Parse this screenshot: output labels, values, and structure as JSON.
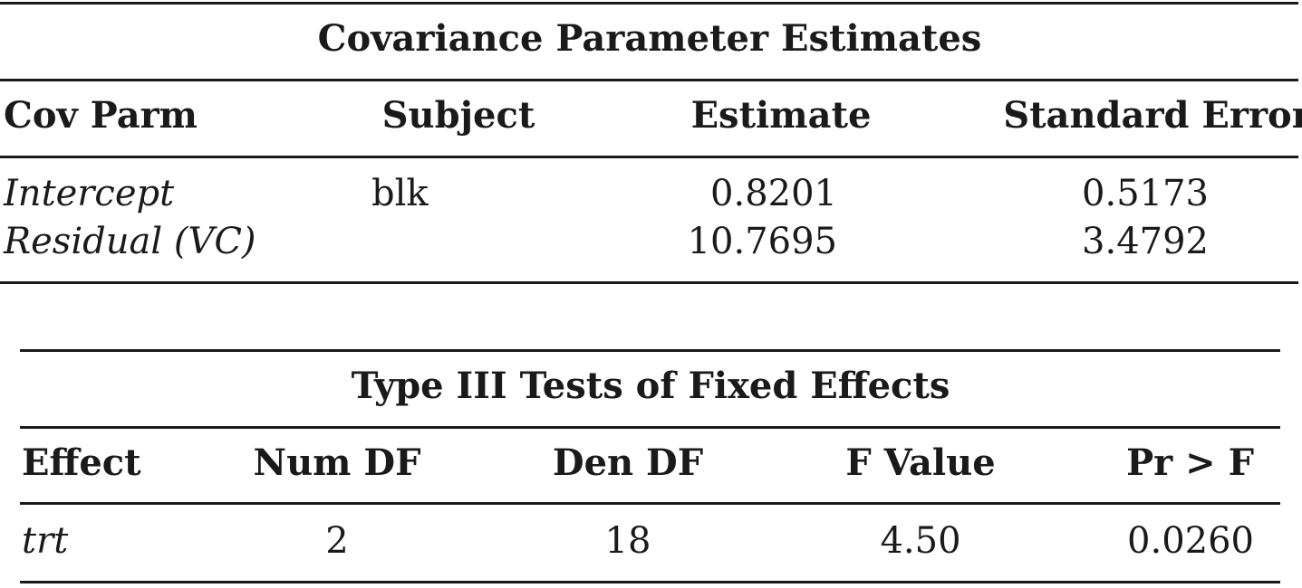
{
  "covariance_table": {
    "title": "Covariance Parameter Estimates",
    "headers": [
      "Cov Parm",
      "Subject",
      "Estimate",
      "Standard Error"
    ],
    "rows": [
      {
        "cov_parm": "Intercept",
        "subject": "blk",
        "estimate": "0.8201",
        "standard_error": "0.5173"
      },
      {
        "cov_parm": "Residual (VC)",
        "subject": "",
        "estimate": "10.7695",
        "standard_error": "3.4792"
      }
    ]
  },
  "fixed_effects_table": {
    "title": "Type III Tests of Fixed Effects",
    "headers": [
      "Effect",
      "Num DF",
      "Den DF",
      "F Value",
      "Pr > F"
    ],
    "rows": [
      {
        "effect": "trt",
        "num_df": "2",
        "den_df": "18",
        "f_value": "4.50",
        "pr_f": "0.0260"
      }
    ]
  }
}
